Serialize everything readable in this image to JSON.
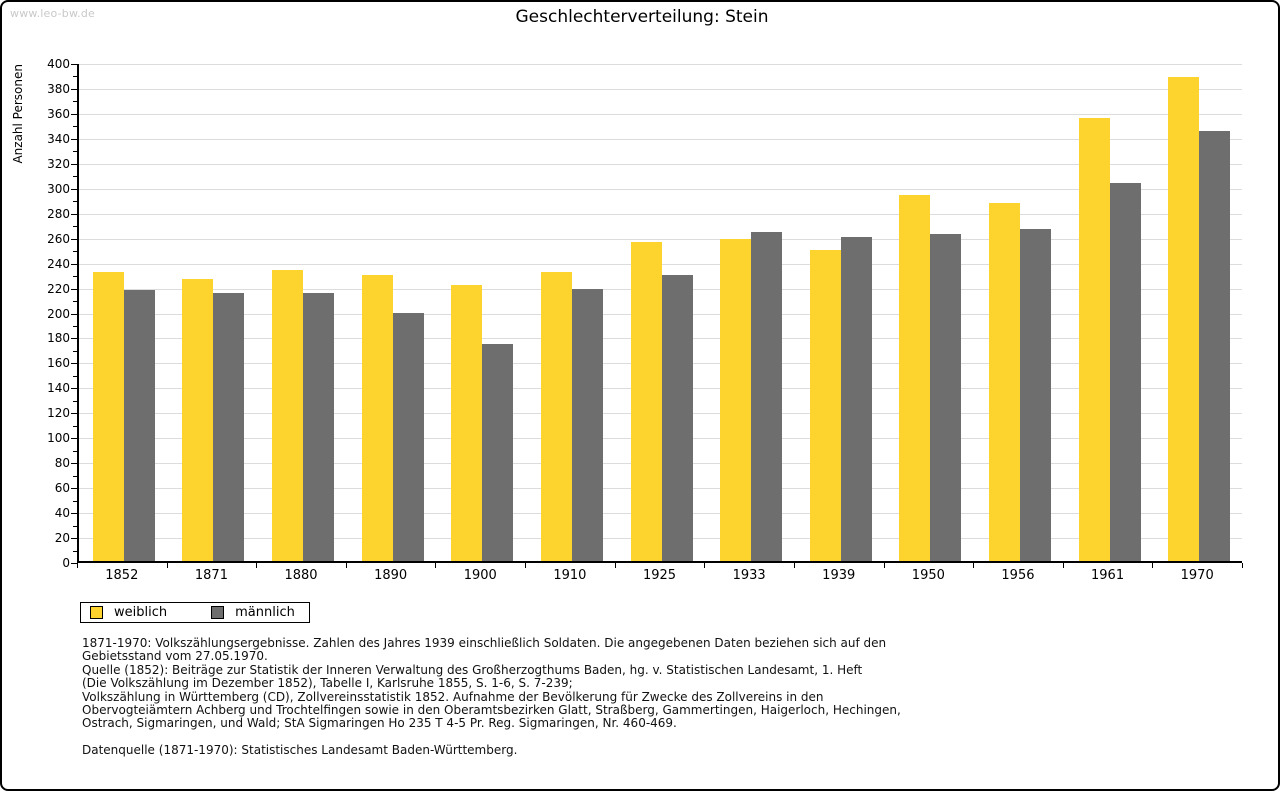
{
  "page": {
    "watermark": "www.leo-bw.de",
    "title": "Geschlechterverteilung: Stein"
  },
  "chart_data": {
    "type": "bar",
    "title": "Geschlechterverteilung: Stein",
    "xlabel": "",
    "ylabel": "Anzahl Personen",
    "ylim": [
      0,
      400
    ],
    "ytick_step": 20,
    "ytick_minor_step": 10,
    "grid": true,
    "legend_position": "bottom-left",
    "categories": [
      "1852",
      "1871",
      "1880",
      "1890",
      "1900",
      "1910",
      "1925",
      "1933",
      "1939",
      "1950",
      "1956",
      "1961",
      "1970"
    ],
    "series": [
      {
        "name": "weiblich",
        "color": "#FDD32D",
        "values": [
          232,
          226,
          233,
          229,
          221,
          232,
          256,
          258,
          249,
          293,
          287,
          355,
          388
        ]
      },
      {
        "name": "männlich",
        "color": "#6E6E6E",
        "values": [
          217,
          215,
          215,
          199,
          174,
          218,
          229,
          264,
          260,
          262,
          266,
          303,
          345
        ]
      }
    ]
  },
  "footnotes": {
    "lines": [
      "1871-1970: Volkszählungsergebnisse. Zahlen des Jahres 1939 einschließlich Soldaten. Die angegebenen Daten beziehen sich auf den",
      "Gebietsstand vom 27.05.1970.",
      "Quelle (1852): Beiträge zur Statistik der Inneren Verwaltung des Großherzogthums Baden, hg. v. Statistischen Landesamt, 1. Heft",
      "(Die Volkszählung im Dezember 1852), Tabelle I, Karlsruhe 1855, S. 1-6, S. 7-239;",
      "Volkszählung in Württemberg (CD), Zollvereinsstatistik 1852. Aufnahme der Bevölkerung für Zwecke des Zollvereins in den",
      "Obervogteiämtern Achberg und Trochtelfingen sowie in den Oberamtsbezirken Glatt, Straßberg, Gammertingen, Haigerloch, Hechingen,",
      "Ostrach, Sigmaringen, und Wald; StA Sigmaringen Ho 235 T 4-5 Pr. Reg. Sigmaringen, Nr. 460-469."
    ],
    "datasource": "Datenquelle (1871-1970): Statistisches Landesamt Baden-Württemberg."
  },
  "colors": {
    "female_bar": "#FDD32D",
    "male_bar": "#6E6E6E",
    "gridline": "#DCDCDC",
    "watermark": "#C9C9C9",
    "axis": "#000000"
  }
}
